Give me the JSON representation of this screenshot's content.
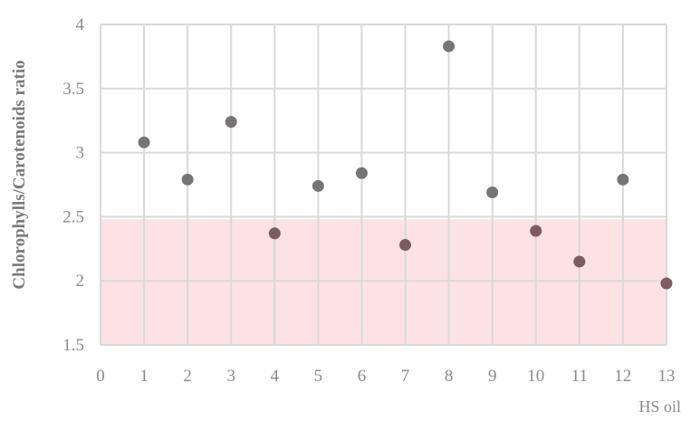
{
  "chart_data": {
    "type": "scatter",
    "title": "",
    "xlabel": "HS oil",
    "ylabel": "Chlorophylls/Carotenoids ratio",
    "xlim": [
      0,
      13
    ],
    "ylim": [
      1.5,
      4
    ],
    "x_ticks": [
      "0",
      "1",
      "2",
      "3",
      "4",
      "5",
      "6",
      "7",
      "8",
      "9",
      "10",
      "11",
      "12",
      "13"
    ],
    "y_ticks": [
      "1.5",
      "2",
      "2.5",
      "3",
      "3.5",
      "4"
    ],
    "grid": true,
    "legend": "none",
    "highlight_band": {
      "y_from": 1.5,
      "y_to": 2.48,
      "color": "#fde2e3"
    },
    "colors": {
      "point_above_band": "#787374",
      "point_in_band": "#7d5c60",
      "grid": "#d9d9d9"
    },
    "series": [
      {
        "x": [
          1,
          2,
          3,
          4,
          5,
          6,
          7,
          8,
          9,
          10,
          11,
          12,
          13
        ],
        "y": [
          3.08,
          2.79,
          3.24,
          2.37,
          2.74,
          2.84,
          2.28,
          3.83,
          2.69,
          2.39,
          2.15,
          2.79,
          1.98
        ]
      }
    ]
  }
}
